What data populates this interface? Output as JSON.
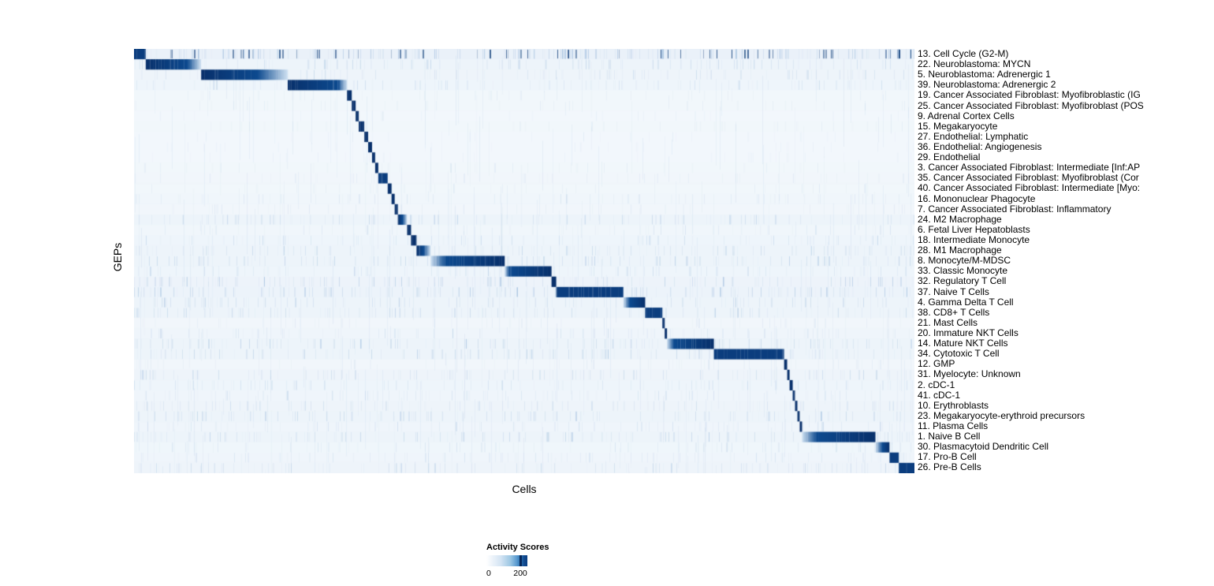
{
  "legend": {
    "title": "Activity Scores",
    "min": "0",
    "max": "200"
  },
  "chart_data": {
    "type": "heatmap",
    "title": "",
    "xlabel": "Cells",
    "ylabel": "GEPs",
    "legend_title": "Activity Scores",
    "value_range": [
      0,
      200
    ],
    "colorscale": {
      "name": "Blues",
      "low": "#f7fbff",
      "high": "#08306b"
    },
    "background": "#f3f8fc",
    "grid": false,
    "x_tick_labels": [],
    "rows": [
      {
        "label": "13. Cell Cycle (G2-M)",
        "start": 0.0,
        "end": 0.015,
        "fade": "none",
        "core": 1.0,
        "noise": 0.85,
        "dark_ticks": true
      },
      {
        "label": "22. Neuroblastoma: MYCN",
        "start": 0.015,
        "end": 0.086,
        "fade": "right",
        "core": 0.75,
        "noise": 0.5
      },
      {
        "label": "5. Neuroblastoma: Adrenergic 1",
        "start": 0.086,
        "end": 0.197,
        "fade": "right",
        "core": 0.65,
        "noise": 0.45
      },
      {
        "label": "39. Neuroblastoma: Adrenergic 2",
        "start": 0.197,
        "end": 0.273,
        "fade": "right",
        "core": 0.85,
        "noise": 0.4
      },
      {
        "label": "19. Cancer Associated Fibroblast: Myofibroblastic (IG",
        "start": 0.273,
        "end": 0.279,
        "fade": "none",
        "core": 1.0,
        "noise": 0.15
      },
      {
        "label": "25. Cancer Associated Fibroblast: Myofibroblast (POS",
        "start": 0.279,
        "end": 0.284,
        "fade": "none",
        "core": 1.0,
        "noise": 0.15
      },
      {
        "label": "9. Adrenal Cortex Cells",
        "start": 0.284,
        "end": 0.288,
        "fade": "none",
        "core": 1.0,
        "noise": 0.1
      },
      {
        "label": "15. Megakaryocyte",
        "start": 0.288,
        "end": 0.295,
        "fade": "none",
        "core": 1.0,
        "noise": 0.15
      },
      {
        "label": "27. Endothelial: Lymphatic",
        "start": 0.295,
        "end": 0.3,
        "fade": "none",
        "core": 1.0,
        "noise": 0.1
      },
      {
        "label": "36. Endothelial: Angiogenesis",
        "start": 0.3,
        "end": 0.305,
        "fade": "none",
        "core": 1.0,
        "noise": 0.12
      },
      {
        "label": "29. Endothelial",
        "start": 0.305,
        "end": 0.309,
        "fade": "none",
        "core": 1.0,
        "noise": 0.12
      },
      {
        "label": "3. Cancer Associated Fibroblast: Intermediate [Inf:AP",
        "start": 0.309,
        "end": 0.313,
        "fade": "none",
        "core": 1.0,
        "noise": 0.15
      },
      {
        "label": "35. Cancer Associated Fibroblast: Myofibroblast (Cor",
        "start": 0.313,
        "end": 0.325,
        "fade": "none",
        "core": 1.0,
        "noise": 0.2
      },
      {
        "label": "40. Cancer Associated Fibroblast: Intermediate [Myo:",
        "start": 0.325,
        "end": 0.33,
        "fade": "none",
        "core": 1.0,
        "noise": 0.15
      },
      {
        "label": "16. Mononuclear Phagocyte",
        "start": 0.33,
        "end": 0.334,
        "fade": "none",
        "core": 1.0,
        "noise": 0.25
      },
      {
        "label": "7. Cancer Associated Fibroblast: Inflammatory",
        "start": 0.334,
        "end": 0.338,
        "fade": "none",
        "core": 1.0,
        "noise": 0.2
      },
      {
        "label": "24. M2 Macrophage",
        "start": 0.338,
        "end": 0.35,
        "fade": "right",
        "core": 0.5,
        "noise": 0.5
      },
      {
        "label": "6. Fetal Liver Hepatoblasts",
        "start": 0.35,
        "end": 0.355,
        "fade": "none",
        "core": 1.0,
        "noise": 0.25
      },
      {
        "label": "18. Intermediate Monocyte",
        "start": 0.355,
        "end": 0.362,
        "fade": "none",
        "core": 1.0,
        "noise": 0.4
      },
      {
        "label": "28. M1 Macrophage",
        "start": 0.362,
        "end": 0.38,
        "fade": "right",
        "core": 0.5,
        "noise": 0.5
      },
      {
        "label": "8. Monocyte/M-MDSC",
        "start": 0.38,
        "end": 0.475,
        "fade": "left",
        "core": 0.8,
        "noise": 0.55
      },
      {
        "label": "33. Classic Monocyte",
        "start": 0.475,
        "end": 0.535,
        "fade": "left",
        "core": 0.9,
        "noise": 0.4
      },
      {
        "label": "32. Regulatory T Cell",
        "start": 0.535,
        "end": 0.541,
        "fade": "none",
        "core": 1.0,
        "noise": 0.6
      },
      {
        "label": "37. Naive T Cells",
        "start": 0.541,
        "end": 0.627,
        "fade": "none",
        "core": 1.0,
        "noise": 0.65
      },
      {
        "label": "4. Gamma Delta T Cell",
        "start": 0.627,
        "end": 0.655,
        "fade": "left",
        "core": 0.7,
        "noise": 0.5
      },
      {
        "label": "38. CD8+ T Cells",
        "start": 0.655,
        "end": 0.677,
        "fade": "none",
        "core": 1.0,
        "noise": 0.5
      },
      {
        "label": "21. Mast Cells",
        "start": 0.677,
        "end": 0.68,
        "fade": "none",
        "core": 1.0,
        "noise": 0.2
      },
      {
        "label": "20. Immature NKT Cells",
        "start": 0.68,
        "end": 0.683,
        "fade": "none",
        "core": 1.0,
        "noise": 0.35
      },
      {
        "label": "14. Mature NKT Cells",
        "start": 0.683,
        "end": 0.743,
        "fade": "left",
        "core": 0.85,
        "noise": 0.55
      },
      {
        "label": "34. Cytotoxic T Cell",
        "start": 0.743,
        "end": 0.833,
        "fade": "none",
        "core": 1.0,
        "noise": 0.55
      },
      {
        "label": "12. GMP",
        "start": 0.833,
        "end": 0.837,
        "fade": "none",
        "core": 1.0,
        "noise": 0.2
      },
      {
        "label": "31. Myelocyte: Unknown",
        "start": 0.837,
        "end": 0.84,
        "fade": "none",
        "core": 1.0,
        "noise": 0.45
      },
      {
        "label": "2. cDC-1",
        "start": 0.84,
        "end": 0.844,
        "fade": "none",
        "core": 1.0,
        "noise": 0.4
      },
      {
        "label": "41. cDC-1",
        "start": 0.844,
        "end": 0.847,
        "fade": "none",
        "core": 1.0,
        "noise": 0.35
      },
      {
        "label": "10. Erythroblasts",
        "start": 0.847,
        "end": 0.85,
        "fade": "none",
        "core": 1.0,
        "noise": 0.45
      },
      {
        "label": "23. Megakaryocyte-erythroid precursors",
        "start": 0.85,
        "end": 0.853,
        "fade": "none",
        "core": 1.0,
        "noise": 0.5
      },
      {
        "label": "11. Plasma Cells",
        "start": 0.853,
        "end": 0.856,
        "fade": "none",
        "core": 1.0,
        "noise": 0.35
      },
      {
        "label": "1. Naive B Cell",
        "start": 0.856,
        "end": 0.95,
        "fade": "left",
        "core": 0.8,
        "noise": 0.5
      },
      {
        "label": "30. Plasmacytoid Dendritic Cell",
        "start": 0.95,
        "end": 0.968,
        "fade": "left",
        "core": 0.5,
        "noise": 0.3
      },
      {
        "label": "17. Pro-B Cell",
        "start": 0.968,
        "end": 0.98,
        "fade": "none",
        "core": 1.0,
        "noise": 0.35
      },
      {
        "label": "26. Pre-B Cells",
        "start": 0.98,
        "end": 1.0,
        "fade": "none",
        "core": 1.0,
        "noise": 0.45
      }
    ]
  }
}
